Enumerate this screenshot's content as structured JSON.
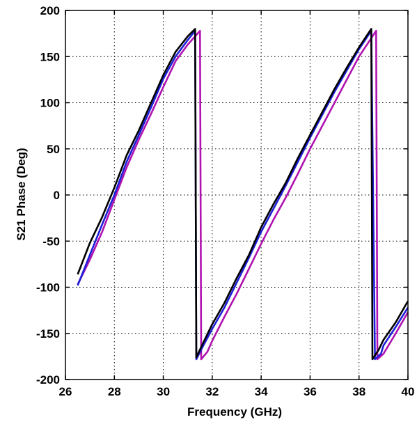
{
  "chart_data": {
    "type": "line",
    "title": "",
    "xlabel": "Frequency (GHz)",
    "ylabel": "S21 Phase (Deg)",
    "xlim": [
      26,
      40
    ],
    "ylim": [
      -200,
      200
    ],
    "xticks": [
      26,
      28,
      30,
      32,
      34,
      36,
      38,
      40
    ],
    "yticks": [
      -200,
      -150,
      -100,
      -50,
      0,
      50,
      100,
      150,
      200
    ],
    "grid": true,
    "grid_style": "dotted",
    "legend": "none",
    "series": [
      {
        "color": "#000000",
        "x": [
          26.5,
          27.0,
          27.5,
          28.0,
          28.5,
          29.0,
          29.5,
          30.0,
          30.5,
          31.0,
          31.3,
          31.35,
          31.6,
          32.0,
          32.5,
          33.0,
          33.5,
          34.0,
          34.5,
          35.0,
          35.5,
          36.0,
          36.5,
          37.0,
          37.5,
          38.0,
          38.5,
          38.55,
          38.8,
          39.0,
          39.5,
          40.0
        ],
        "y": [
          -86,
          -52,
          -24,
          8,
          43,
          70,
          100,
          130,
          155,
          172,
          180,
          -176,
          -162,
          -140,
          -117,
          -90,
          -65,
          -35,
          -10,
          13,
          40,
          65,
          90,
          115,
          138,
          160,
          180,
          -178,
          -168,
          -157,
          -138,
          -115
        ]
      },
      {
        "color": "#1e1ed8",
        "x": [
          26.5,
          27.0,
          27.5,
          28.0,
          28.5,
          29.0,
          29.5,
          30.0,
          30.5,
          31.0,
          31.3,
          31.35,
          31.6,
          32.0,
          32.5,
          33.0,
          33.5,
          34.0,
          34.5,
          35.0,
          35.5,
          36.0,
          36.5,
          37.0,
          37.5,
          38.0,
          38.5,
          38.65,
          38.9,
          39.0,
          39.5,
          40.0
        ],
        "y": [
          -98,
          -65,
          -32,
          0,
          36,
          65,
          95,
          126,
          150,
          168,
          178,
          -178,
          -165,
          -145,
          -122,
          -95,
          -68,
          -40,
          -15,
          10,
          36,
          62,
          87,
          112,
          135,
          158,
          178,
          -178,
          -172,
          -163,
          -143,
          -122
        ]
      },
      {
        "color": "#b012b0",
        "x": [
          26.5,
          27.0,
          27.5,
          28.0,
          28.5,
          29.0,
          29.5,
          30.0,
          30.5,
          31.0,
          31.5,
          31.55,
          31.8,
          32.0,
          32.5,
          33.0,
          33.5,
          34.0,
          34.5,
          35.0,
          35.5,
          36.0,
          36.5,
          37.0,
          37.5,
          38.0,
          38.5,
          38.7,
          38.75,
          39.0,
          39.5,
          40.0
        ],
        "y": [
          -97,
          -70,
          -40,
          -5,
          30,
          60,
          88,
          117,
          145,
          163,
          178,
          -178,
          -170,
          -158,
          -132,
          -107,
          -80,
          -53,
          -27,
          -3,
          23,
          50,
          75,
          100,
          125,
          150,
          170,
          178,
          -178,
          -172,
          -150,
          -127
        ]
      }
    ]
  }
}
